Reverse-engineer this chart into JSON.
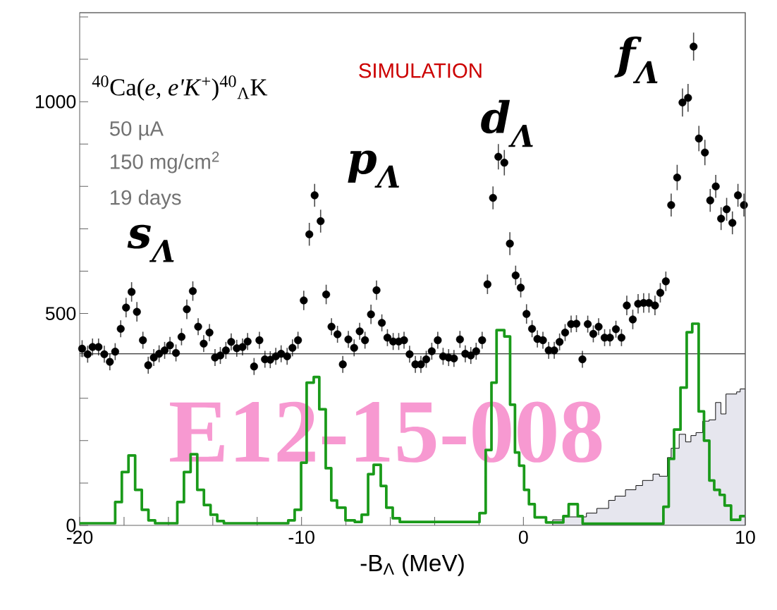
{
  "chart_data": {
    "type": "scatter",
    "xlabel": "-B$_{Λ}$ (MeV)",
    "xlim": [
      -20,
      10
    ],
    "ylim": [
      0,
      1210
    ],
    "xticks": [
      -20,
      {
        "value": -18,
        "label": null
      },
      {
        "value": -16,
        "label": null
      },
      {
        "value": -14,
        "label": null
      },
      {
        "value": -12,
        "label": null
      },
      -10,
      {
        "value": -8,
        "label": null
      },
      {
        "value": -6,
        "label": null
      },
      {
        "value": -4,
        "label": null
      },
      {
        "value": -2,
        "label": null
      },
      0,
      {
        "value": 2,
        "label": null
      },
      {
        "value": 4,
        "label": null
      },
      {
        "value": 6,
        "label": null
      },
      {
        "value": 8,
        "label": null
      },
      10
    ],
    "yticks": [
      0,
      {
        "value": 100,
        "label": null
      },
      {
        "value": 200,
        "label": null
      },
      {
        "value": 300,
        "label": null
      },
      {
        "value": 400,
        "label": null
      },
      500,
      {
        "value": 600,
        "label": null
      },
      {
        "value": 700,
        "label": null
      },
      {
        "value": 800,
        "label": null
      },
      {
        "value": 900,
        "label": null
      },
      1000,
      {
        "value": 1100,
        "label": null
      },
      {
        "value": 1200,
        "label": null
      }
    ],
    "annotations": [
      "$^{40}$Ca(*e*, *e'K*$^{+}$)$^{40}$$_{Λ}$K",
      "50 µA",
      "150 mg/cm$^{2}$",
      "19 days",
      "SIMULATION",
      "E12-15-008",
      "s$_{Λ}$",
      "p$_{Λ}$",
      "d$_{Λ}$",
      "f$_{Λ}$"
    ],
    "series": [
      {
        "marker": "circle",
        "color": "#000000",
        "x": [
          -19.89,
          -19.64,
          -19.42,
          -19.15,
          -18.89,
          -18.64,
          -18.4,
          -18.15,
          -17.91,
          -17.66,
          -17.42,
          -17.15,
          -16.91,
          -16.66,
          -16.42,
          -16.17,
          -15.93,
          -15.66,
          -15.41,
          -15.17,
          -14.9,
          -14.66,
          -14.41,
          -14.15,
          -13.9,
          -13.66,
          -13.41,
          -13.17,
          -12.92,
          -12.66,
          -12.43,
          -12.14,
          -11.9,
          -11.65,
          -11.41,
          -11.16,
          -10.92,
          -10.65,
          -10.41,
          -10.16,
          -9.9,
          -9.65,
          -9.41,
          -9.14,
          -8.89,
          -8.65,
          -8.38,
          -8.14,
          -7.89,
          -7.63,
          -7.38,
          -7.14,
          -6.87,
          -6.62,
          -6.38,
          -6.13,
          -5.87,
          -5.62,
          -5.38,
          -5.13,
          -4.87,
          -4.62,
          -4.38,
          -4.13,
          -3.86,
          -3.62,
          -3.37,
          -3.13,
          -2.86,
          -2.62,
          -2.37,
          -2.13,
          -1.86,
          -1.62,
          -1.37,
          -1.13,
          -0.86,
          -0.61,
          -0.35,
          -0.12,
          0.14,
          0.39,
          0.63,
          0.88,
          1.14,
          1.39,
          1.63,
          1.88,
          2.15,
          2.39,
          2.66,
          2.9,
          3.15,
          3.39,
          3.66,
          3.9,
          4.17,
          4.42,
          4.66,
          4.93,
          5.17,
          5.42,
          5.66,
          5.93,
          6.17,
          6.42,
          6.66,
          6.93,
          7.17,
          7.42,
          7.67,
          7.91,
          8.18,
          8.42,
          8.67,
          8.91,
          9.16,
          9.42,
          9.67,
          9.94
        ],
        "values": [
          417,
          404,
          421,
          421,
          404,
          386,
          410,
          464,
          514,
          551,
          504,
          437,
          378,
          396,
          405,
          413,
          425,
          407,
          445,
          510,
          553,
          469,
          429,
          455,
          396,
          401,
          413,
          433,
          418,
          421,
          434,
          375,
          437,
          392,
          391,
          399,
          405,
          399,
          419,
          437,
          531,
          687,
          779,
          718,
          545,
          469,
          451,
          380,
          439,
          419,
          458,
          437,
          498,
          555,
          478,
          443,
          434,
          434,
          437,
          404,
          380,
          380,
          392,
          411,
          437,
          399,
          396,
          394,
          439,
          405,
          401,
          411,
          437,
          569,
          773,
          870,
          856,
          665,
          590,
          561,
          499,
          464,
          440,
          437,
          413,
          413,
          433,
          455,
          475,
          476,
          392,
          475,
          452,
          469,
          443,
          443,
          463,
          443,
          519,
          486,
          523,
          525,
          525,
          519,
          549,
          576,
          756,
          821,
          998,
          1009,
          1130,
          913,
          880,
          767,
          800,
          724,
          746,
          714,
          779,
          756
        ],
        "errors": [
          20,
          20,
          20,
          20,
          20,
          20,
          20,
          20,
          23,
          23,
          23,
          20,
          20,
          20,
          20,
          20,
          20,
          20,
          20,
          23,
          23,
          20,
          20,
          20,
          20,
          20,
          20,
          20,
          20,
          20,
          20,
          20,
          20,
          20,
          20,
          20,
          20,
          20,
          20,
          20,
          23,
          27,
          27,
          27,
          23,
          20,
          20,
          20,
          20,
          20,
          20,
          20,
          23,
          23,
          20,
          20,
          20,
          20,
          20,
          20,
          20,
          20,
          20,
          20,
          20,
          20,
          20,
          20,
          20,
          20,
          20,
          20,
          20,
          23,
          27,
          30,
          30,
          27,
          23,
          23,
          23,
          20,
          20,
          20,
          20,
          20,
          20,
          20,
          20,
          20,
          20,
          20,
          20,
          20,
          20,
          20,
          20,
          20,
          23,
          23,
          23,
          23,
          23,
          23,
          23,
          23,
          27,
          30,
          33,
          33,
          33,
          30,
          30,
          27,
          27,
          27,
          27,
          27,
          27,
          27
        ]
      },
      {
        "type": "line",
        "marker": "none",
        "color": "#000000",
        "x": [
          -20,
          10
        ],
        "values": [
          405,
          405
        ]
      },
      {
        "type": "area",
        "marker": "none",
        "color": "#e6e6ee",
        "x": [
          1.32,
          1.8,
          2.84,
          3.31,
          3.84,
          4.13,
          4.6,
          5.07,
          5.37,
          5.84,
          6.13,
          6.49,
          6.66,
          7.02,
          7.31,
          7.55,
          7.78,
          8.08,
          8.37,
          8.66,
          8.9,
          9.13,
          9.61,
          9.77,
          10
        ],
        "values": [
          13,
          20,
          29,
          40,
          59,
          69,
          84,
          94,
          106,
          121,
          116,
          160,
          182,
          215,
          197,
          212,
          219,
          246,
          249,
          290,
          263,
          310,
          315,
          322,
          322
        ]
      },
      {
        "type": "step",
        "marker": "none",
        "color": "#1a9a1a",
        "x": [
          -20,
          -18.4,
          -18.1,
          -17.8,
          -17.5,
          -17.2,
          -16.9,
          -16.6,
          -15.6,
          -15.3,
          -15.0,
          -14.7,
          -14.4,
          -14.1,
          -13.8,
          -13.5,
          -10.6,
          -10.31,
          -10.02,
          -9.77,
          -9.45,
          -9.2,
          -8.91,
          -8.66,
          -8.4,
          -8.02,
          -7.6,
          -7.29,
          -7.0,
          -6.75,
          -6.43,
          -6.18,
          -5.89,
          -5.57,
          -1.98,
          -1.7,
          -1.44,
          -1.21,
          -0.86,
          -0.6,
          -0.38,
          -0.19,
          0.03,
          0.25,
          0.51,
          1.02,
          1.8,
          2.04,
          2.45,
          2.67,
          6.31,
          6.55,
          6.79,
          7.08,
          7.36,
          7.61,
          7.9,
          8.14,
          8.38,
          8.6,
          8.85,
          9.07,
          9.36,
          9.77,
          10
        ],
        "values": [
          5,
          55,
          126,
          165,
          84,
          37,
          12,
          5,
          55,
          126,
          168,
          84,
          48,
          25,
          10,
          5,
          12,
          37,
          148,
          337,
          350,
          274,
          135,
          59,
          42,
          12,
          8,
          25,
          121,
          143,
          93,
          42,
          17,
          8,
          29,
          178,
          337,
          461,
          446,
          285,
          172,
          141,
          84,
          50,
          19,
          7,
          22,
          50,
          22,
          4,
          44,
          157,
          226,
          325,
          456,
          476,
          269,
          200,
          106,
          84,
          72,
          47,
          13,
          22,
          22
        ]
      }
    ]
  }
}
